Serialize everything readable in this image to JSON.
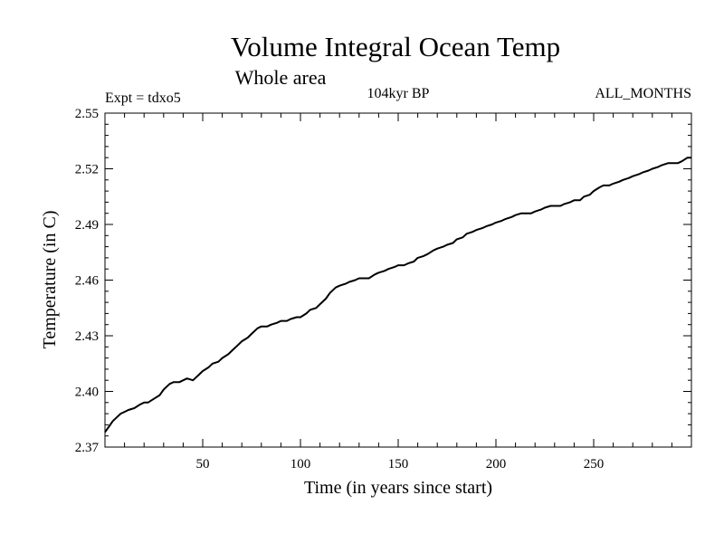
{
  "chart_data": {
    "type": "line",
    "title": "Volume Integral Ocean Temp",
    "subtitle": "Whole area",
    "header_left": "Expt = tdxo5",
    "header_center": "104kyr BP",
    "header_right": "ALL_MONTHS",
    "xlabel": "Time (in years since start)",
    "ylabel": "Temperature (in C)",
    "xlim": [
      0,
      300
    ],
    "ylim": [
      2.37,
      2.55
    ],
    "xticks": [
      50,
      100,
      150,
      200,
      250
    ],
    "yticks": [
      2.37,
      2.4,
      2.43,
      2.46,
      2.49,
      2.52,
      2.55
    ],
    "ytick_labels": [
      "2.37",
      "2.40",
      "2.43",
      "2.46",
      "2.49",
      "2.52",
      "2.55"
    ],
    "grid": false,
    "series": [
      {
        "color": "#000000",
        "x": [
          0,
          2,
          4,
          6,
          8,
          10,
          12,
          15,
          18,
          20,
          22,
          25,
          28,
          30,
          33,
          35,
          38,
          40,
          42,
          45,
          48,
          50,
          53,
          55,
          58,
          60,
          63,
          65,
          68,
          70,
          73,
          75,
          78,
          80,
          83,
          85,
          88,
          90,
          93,
          95,
          98,
          100,
          103,
          105,
          108,
          110,
          113,
          115,
          118,
          120,
          123,
          125,
          128,
          130,
          133,
          135,
          138,
          140,
          143,
          145,
          148,
          150,
          153,
          155,
          158,
          160,
          163,
          165,
          168,
          170,
          173,
          175,
          178,
          180,
          183,
          185,
          188,
          190,
          193,
          195,
          198,
          200,
          203,
          205,
          208,
          210,
          213,
          215,
          218,
          220,
          223,
          225,
          228,
          230,
          233,
          235,
          238,
          240,
          243,
          245,
          248,
          250,
          253,
          255,
          258,
          260,
          263,
          265,
          268,
          270,
          273,
          275,
          278,
          280,
          283,
          285,
          288,
          290,
          293,
          295,
          298,
          300
        ],
        "values": [
          2.378,
          2.381,
          2.384,
          2.386,
          2.388,
          2.389,
          2.39,
          2.391,
          2.393,
          2.394,
          2.394,
          2.396,
          2.398,
          2.401,
          2.404,
          2.405,
          2.405,
          2.406,
          2.407,
          2.406,
          2.409,
          2.411,
          2.413,
          2.415,
          2.416,
          2.418,
          2.42,
          2.422,
          2.425,
          2.427,
          2.429,
          2.431,
          2.434,
          2.435,
          2.435,
          2.436,
          2.437,
          2.438,
          2.438,
          2.439,
          2.44,
          2.44,
          2.442,
          2.444,
          2.445,
          2.447,
          2.45,
          2.453,
          2.456,
          2.457,
          2.458,
          2.459,
          2.46,
          2.461,
          2.461,
          2.461,
          2.463,
          2.464,
          2.465,
          2.466,
          2.467,
          2.468,
          2.468,
          2.469,
          2.47,
          2.472,
          2.473,
          2.474,
          2.476,
          2.477,
          2.478,
          2.479,
          2.48,
          2.482,
          2.483,
          2.485,
          2.486,
          2.487,
          2.488,
          2.489,
          2.49,
          2.491,
          2.492,
          2.493,
          2.494,
          2.495,
          2.496,
          2.496,
          2.496,
          2.497,
          2.498,
          2.499,
          2.5,
          2.5,
          2.5,
          2.501,
          2.502,
          2.503,
          2.503,
          2.505,
          2.506,
          2.508,
          2.51,
          2.511,
          2.511,
          2.512,
          2.513,
          2.514,
          2.515,
          2.516,
          2.517,
          2.518,
          2.519,
          2.52,
          2.521,
          2.522,
          2.523,
          2.523,
          2.523,
          2.524,
          2.526,
          2.526
        ]
      }
    ]
  }
}
